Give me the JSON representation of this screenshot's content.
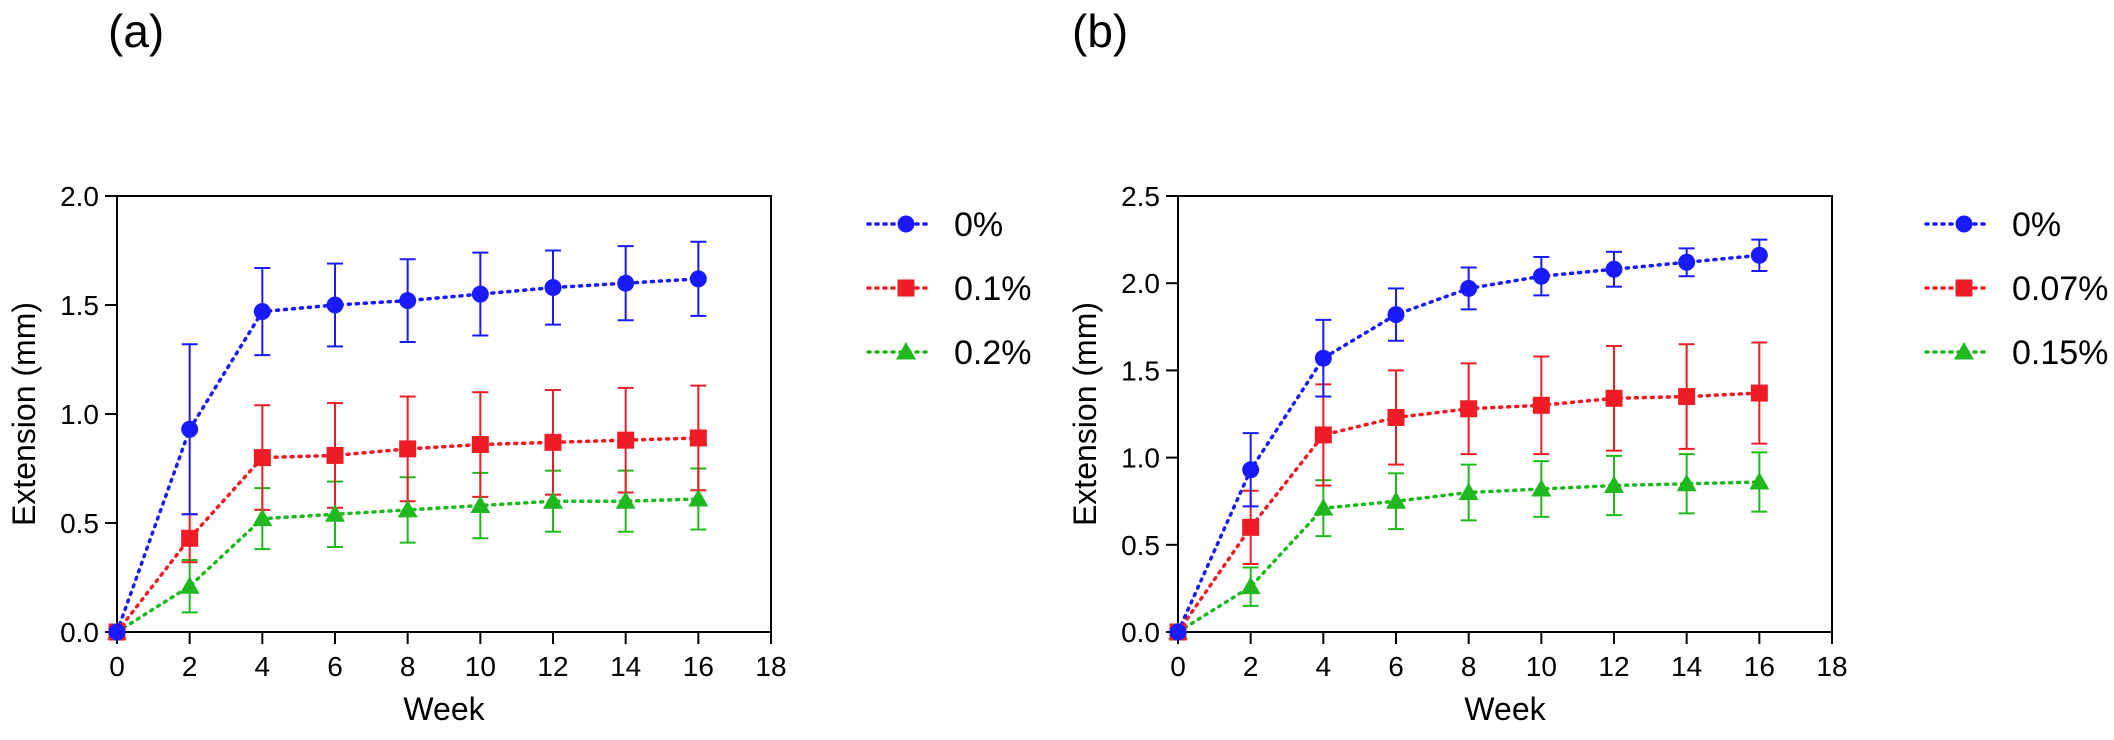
{
  "panels": {
    "a": {
      "label": "(a)"
    },
    "b": {
      "label": "(b)"
    }
  },
  "chart_data": [
    {
      "type": "line",
      "panel": "(a)",
      "xlabel": "Week",
      "ylabel": "Extension (mm)",
      "xlim": [
        0,
        18
      ],
      "ylim": [
        0,
        2.0
      ],
      "xticks": [
        0,
        2,
        4,
        6,
        8,
        10,
        12,
        14,
        16,
        18
      ],
      "yticks": [
        "0.0",
        "0.5",
        "1.0",
        "1.5",
        "2.0"
      ],
      "x": [
        0,
        2,
        4,
        6,
        8,
        10,
        12,
        14,
        16
      ],
      "line_style": "dotted",
      "legend_position": "right",
      "series": [
        {
          "name": "0%",
          "color": "#1a1aff",
          "marker": "circle",
          "values": [
            0,
            0.93,
            1.47,
            1.5,
            1.52,
            1.55,
            1.58,
            1.6,
            1.62
          ],
          "errors": [
            0,
            0.39,
            0.2,
            0.19,
            0.19,
            0.19,
            0.17,
            0.17,
            0.17
          ]
        },
        {
          "name": "0.1%",
          "color": "#ee1c25",
          "marker": "square",
          "values": [
            0,
            0.43,
            0.8,
            0.81,
            0.84,
            0.86,
            0.87,
            0.88,
            0.89
          ],
          "errors": [
            0,
            0.11,
            0.24,
            0.24,
            0.24,
            0.24,
            0.24,
            0.24,
            0.24
          ]
        },
        {
          "name": "0.2%",
          "color": "#1fb81f",
          "marker": "triangle",
          "values": [
            0,
            0.21,
            0.52,
            0.54,
            0.56,
            0.58,
            0.6,
            0.6,
            0.61
          ],
          "errors": [
            0,
            0.12,
            0.14,
            0.15,
            0.15,
            0.15,
            0.14,
            0.14,
            0.14
          ]
        }
      ]
    },
    {
      "type": "line",
      "panel": "(b)",
      "xlabel": "Week",
      "ylabel": "Extension (mm)",
      "xlim": [
        0,
        18
      ],
      "ylim": [
        0,
        2.5
      ],
      "xticks": [
        0,
        2,
        4,
        6,
        8,
        10,
        12,
        14,
        16,
        18
      ],
      "yticks": [
        "0.0",
        "0.5",
        "1.0",
        "1.5",
        "2.0",
        "2.5"
      ],
      "x": [
        0,
        2,
        4,
        6,
        8,
        10,
        12,
        14,
        16
      ],
      "line_style": "dotted",
      "legend_position": "right",
      "series": [
        {
          "name": "0%",
          "color": "#1a1aff",
          "marker": "circle",
          "values": [
            0,
            0.93,
            1.57,
            1.82,
            1.97,
            2.04,
            2.08,
            2.12,
            2.16
          ],
          "errors": [
            0,
            0.21,
            0.22,
            0.15,
            0.12,
            0.11,
            0.1,
            0.08,
            0.09
          ]
        },
        {
          "name": "0.07%",
          "color": "#ee1c25",
          "marker": "square",
          "values": [
            0,
            0.6,
            1.13,
            1.23,
            1.28,
            1.3,
            1.34,
            1.35,
            1.37
          ],
          "errors": [
            0,
            0.21,
            0.29,
            0.27,
            0.26,
            0.28,
            0.3,
            0.3,
            0.29
          ]
        },
        {
          "name": "0.15%",
          "color": "#1fb81f",
          "marker": "triangle",
          "values": [
            0,
            0.26,
            0.71,
            0.75,
            0.8,
            0.82,
            0.84,
            0.85,
            0.86
          ],
          "errors": [
            0,
            0.11,
            0.16,
            0.16,
            0.16,
            0.16,
            0.17,
            0.17,
            0.17
          ]
        }
      ]
    }
  ]
}
